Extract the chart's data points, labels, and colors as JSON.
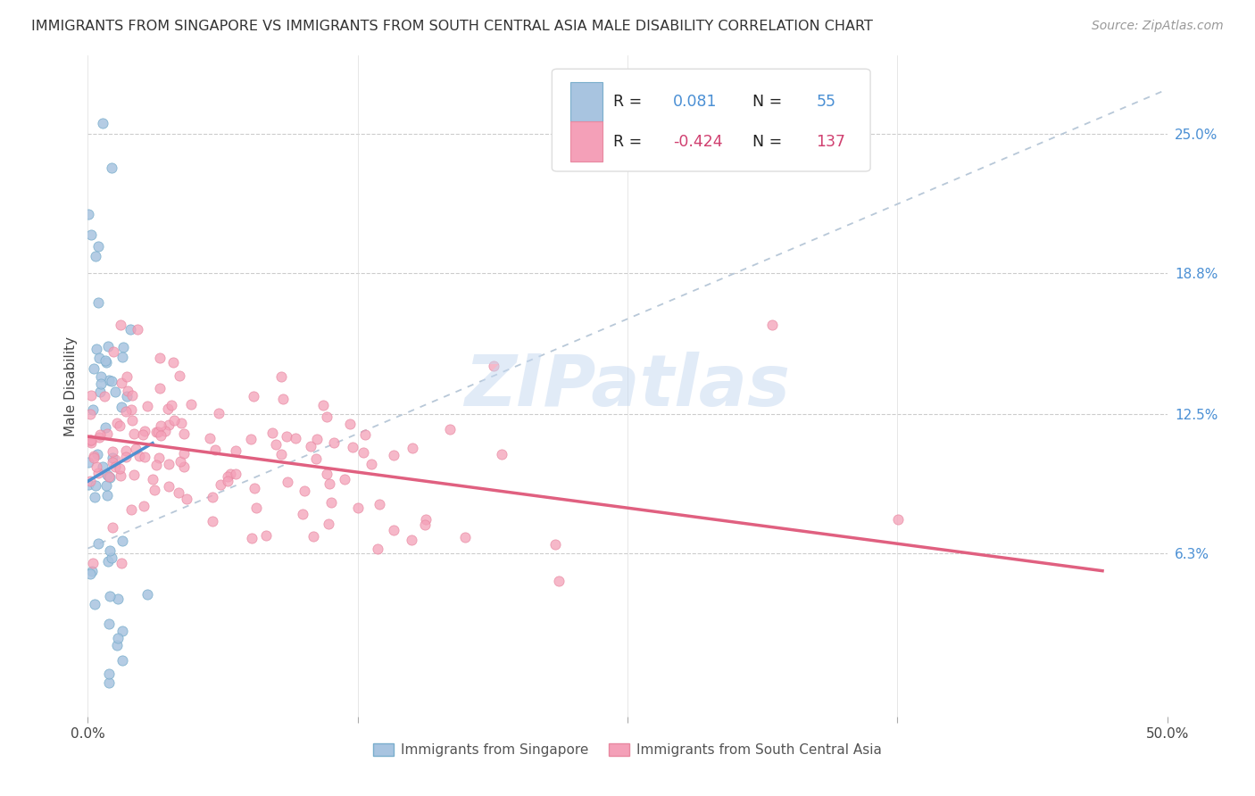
{
  "title": "IMMIGRANTS FROM SINGAPORE VS IMMIGRANTS FROM SOUTH CENTRAL ASIA MALE DISABILITY CORRELATION CHART",
  "source": "Source: ZipAtlas.com",
  "ylabel": "Male Disability",
  "yticks": [
    "25.0%",
    "18.8%",
    "12.5%",
    "6.3%"
  ],
  "ytick_vals": [
    0.25,
    0.188,
    0.125,
    0.063
  ],
  "xlim": [
    0.0,
    0.5
  ],
  "ylim": [
    -0.01,
    0.285
  ],
  "color_blue_scatter": "#a8c4e0",
  "color_pink_scatter": "#f4a0b8",
  "color_blue_edge": "#7aaecc",
  "color_pink_edge": "#e888a0",
  "color_blue_text": "#4a8fd4",
  "color_pink_text": "#d04070",
  "color_trend_blue": "#5090d0",
  "color_trend_pink": "#e06080",
  "color_trend_gray": "#b8c8d8",
  "watermark": "ZIPatlas",
  "legend_label_blue": "Immigrants from Singapore",
  "legend_label_pink": "Immigrants from South Central Asia",
  "r_blue": "0.081",
  "n_blue": "55",
  "r_pink": "-0.424",
  "n_pink": "137"
}
